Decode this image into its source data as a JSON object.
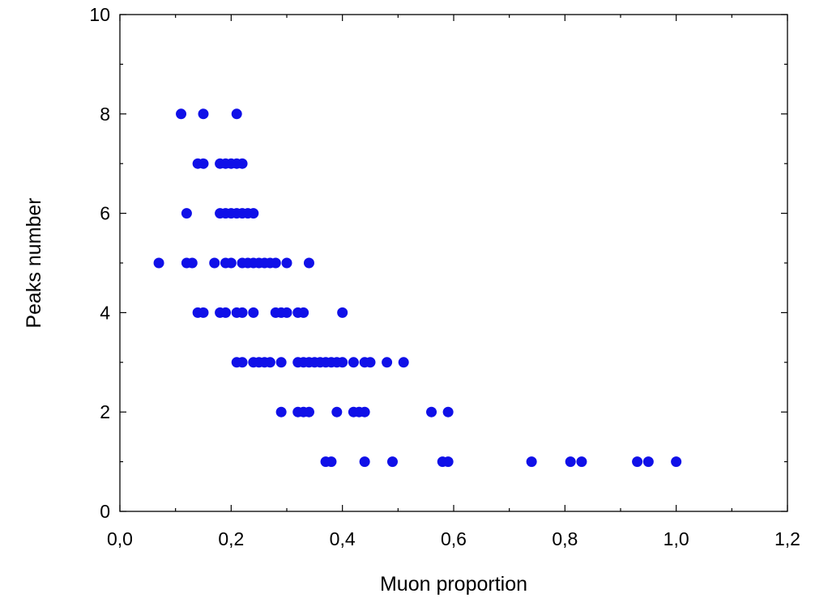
{
  "chart_data": {
    "type": "scatter",
    "title": "",
    "xlabel": "Muon proportion",
    "ylabel": "Peaks number",
    "xlim": [
      0.0,
      1.2
    ],
    "ylim": [
      0,
      10
    ],
    "x_ticks": [
      0.0,
      0.2,
      0.4,
      0.6,
      0.8,
      1.0,
      1.2
    ],
    "x_tick_labels": [
      "0,0",
      "0,2",
      "0,4",
      "0,6",
      "0,8",
      "1,0",
      "1,2"
    ],
    "y_ticks": [
      0,
      2,
      4,
      6,
      8,
      10
    ],
    "y_tick_labels": [
      "0",
      "2",
      "4",
      "6",
      "8",
      "10"
    ],
    "grid": false,
    "legend": "none",
    "marker_color": "#1010e8",
    "series": [
      {
        "points": [
          [
            0.11,
            8
          ],
          [
            0.15,
            8
          ],
          [
            0.21,
            8
          ],
          [
            0.14,
            7
          ],
          [
            0.15,
            7
          ],
          [
            0.18,
            7
          ],
          [
            0.19,
            7
          ],
          [
            0.2,
            7
          ],
          [
            0.21,
            7
          ],
          [
            0.22,
            7
          ],
          [
            0.12,
            6
          ],
          [
            0.18,
            6
          ],
          [
            0.19,
            6
          ],
          [
            0.2,
            6
          ],
          [
            0.21,
            6
          ],
          [
            0.22,
            6
          ],
          [
            0.23,
            6
          ],
          [
            0.24,
            6
          ],
          [
            0.07,
            5
          ],
          [
            0.12,
            5
          ],
          [
            0.13,
            5
          ],
          [
            0.17,
            5
          ],
          [
            0.19,
            5
          ],
          [
            0.2,
            5
          ],
          [
            0.22,
            5
          ],
          [
            0.23,
            5
          ],
          [
            0.24,
            5
          ],
          [
            0.25,
            5
          ],
          [
            0.26,
            5
          ],
          [
            0.27,
            5
          ],
          [
            0.28,
            5
          ],
          [
            0.3,
            5
          ],
          [
            0.34,
            5
          ],
          [
            0.14,
            4
          ],
          [
            0.15,
            4
          ],
          [
            0.18,
            4
          ],
          [
            0.19,
            4
          ],
          [
            0.21,
            4
          ],
          [
            0.22,
            4
          ],
          [
            0.24,
            4
          ],
          [
            0.28,
            4
          ],
          [
            0.29,
            4
          ],
          [
            0.3,
            4
          ],
          [
            0.32,
            4
          ],
          [
            0.33,
            4
          ],
          [
            0.4,
            4
          ],
          [
            0.21,
            3
          ],
          [
            0.22,
            3
          ],
          [
            0.24,
            3
          ],
          [
            0.25,
            3
          ],
          [
            0.26,
            3
          ],
          [
            0.27,
            3
          ],
          [
            0.29,
            3
          ],
          [
            0.32,
            3
          ],
          [
            0.33,
            3
          ],
          [
            0.34,
            3
          ],
          [
            0.35,
            3
          ],
          [
            0.36,
            3
          ],
          [
            0.37,
            3
          ],
          [
            0.38,
            3
          ],
          [
            0.39,
            3
          ],
          [
            0.4,
            3
          ],
          [
            0.42,
            3
          ],
          [
            0.44,
            3
          ],
          [
            0.45,
            3
          ],
          [
            0.48,
            3
          ],
          [
            0.51,
            3
          ],
          [
            0.29,
            2
          ],
          [
            0.32,
            2
          ],
          [
            0.33,
            2
          ],
          [
            0.34,
            2
          ],
          [
            0.39,
            2
          ],
          [
            0.42,
            2
          ],
          [
            0.43,
            2
          ],
          [
            0.44,
            2
          ],
          [
            0.56,
            2
          ],
          [
            0.59,
            2
          ],
          [
            0.37,
            1
          ],
          [
            0.38,
            1
          ],
          [
            0.44,
            1
          ],
          [
            0.49,
            1
          ],
          [
            0.58,
            1
          ],
          [
            0.59,
            1
          ],
          [
            0.74,
            1
          ],
          [
            0.81,
            1
          ],
          [
            0.83,
            1
          ],
          [
            0.93,
            1
          ],
          [
            0.95,
            1
          ],
          [
            1.0,
            1
          ]
        ]
      }
    ]
  }
}
